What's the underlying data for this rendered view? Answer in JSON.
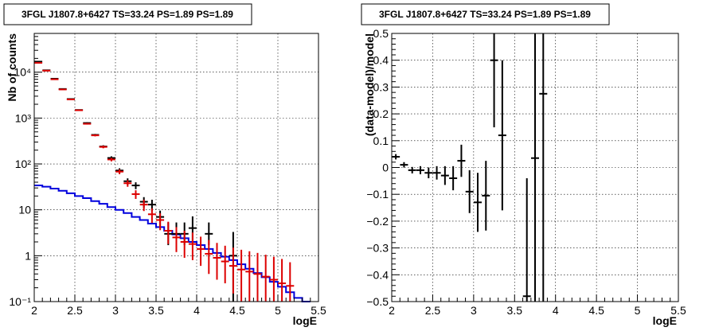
{
  "chart_data": [
    {
      "type": "line",
      "title": "3FGL J1807.8+6427 TS=33.24 PS=1.89 PS=1.89",
      "xlabel": "logE",
      "ylabel": "Nb of counts",
      "xlim": [
        2,
        5.5
      ],
      "ylim": [
        0.1,
        70000
      ],
      "yscale": "log",
      "grid": true,
      "x_ticks": [
        "2",
        "2.5",
        "3",
        "3.5",
        "4",
        "4.5",
        "5",
        "5.5"
      ],
      "y_ticks": [
        "10⁻¹",
        "1",
        "10",
        "10²",
        "10³",
        "10⁴"
      ],
      "series": [
        {
          "color": "#0000dd",
          "kind": "step",
          "x": [
            2.0,
            2.1,
            2.2,
            2.3,
            2.4,
            2.5,
            2.6,
            2.7,
            2.8,
            2.9,
            3.0,
            3.1,
            3.2,
            3.3,
            3.4,
            3.5,
            3.6,
            3.7,
            3.8,
            3.9,
            4.0,
            4.1,
            4.2,
            4.3,
            4.4,
            4.5,
            4.6,
            4.7,
            4.8,
            4.9,
            5.0,
            5.1,
            5.2,
            5.3
          ],
          "values": [
            34,
            32,
            29,
            26,
            23,
            20,
            18,
            15.5,
            13.5,
            11.5,
            10,
            8.5,
            7,
            6,
            5,
            4.2,
            3.5,
            2.9,
            2.4,
            2,
            1.7,
            1.4,
            1.15,
            0.95,
            0.8,
            0.65,
            0.52,
            0.42,
            0.34,
            0.27,
            0.21,
            0.16,
            0.12,
            0.1
          ]
        },
        {
          "color": "#000000",
          "kind": "errorbar",
          "x": [
            2.05,
            2.15,
            2.25,
            2.35,
            2.45,
            2.55,
            2.65,
            2.75,
            2.85,
            2.95,
            3.05,
            3.15,
            3.25,
            3.35,
            3.45,
            3.55,
            3.65,
            3.75,
            3.85,
            3.95,
            4.15,
            4.45
          ],
          "values": [
            17000,
            11000,
            7200,
            4300,
            2600,
            1500,
            780,
            430,
            240,
            135,
            72,
            42,
            34,
            15,
            13,
            7,
            3,
            3,
            3,
            4,
            3,
            1
          ],
          "err_low": [
            130,
            105,
            85,
            65,
            51,
            39,
            28,
            21,
            15.5,
            11.6,
            8.5,
            6.5,
            5.8,
            3.9,
            3.6,
            2.6,
            1.3,
            1.3,
            1.3,
            2,
            1.3,
            0.9
          ],
          "err_high": [
            130,
            105,
            85,
            65,
            51,
            39,
            28,
            21,
            15.5,
            11.6,
            8.5,
            6.5,
            5.8,
            3.9,
            3.6,
            2.6,
            2.3,
            2.3,
            2.3,
            3.2,
            2.3,
            2.3
          ]
        },
        {
          "color": "#dd0000",
          "kind": "errorbar",
          "x": [
            2.05,
            2.15,
            2.25,
            2.35,
            2.45,
            2.55,
            2.65,
            2.75,
            2.85,
            2.95,
            3.05,
            3.15,
            3.25,
            3.35,
            3.45,
            3.55,
            3.65,
            3.75,
            3.85,
            3.95,
            4.05,
            4.15,
            4.25,
            4.35,
            4.45,
            4.55,
            4.65,
            4.75,
            4.85,
            4.95,
            5.05,
            5.15
          ],
          "values": [
            16000,
            10800,
            7000,
            4200,
            2550,
            1480,
            750,
            420,
            235,
            125,
            68,
            38,
            22,
            13,
            8,
            6,
            3.5,
            2.5,
            2,
            1.8,
            1.4,
            1.1,
            0.9,
            0.75,
            0.6,
            0.5,
            0.45,
            0.4,
            0.35,
            0.3,
            0.25,
            0.22
          ],
          "err_low": [
            130,
            105,
            85,
            65,
            51,
            39,
            28,
            21,
            15.5,
            11.2,
            8.2,
            6.2,
            4.7,
            3.6,
            2.8,
            2.4,
            1.7,
            1.3,
            1.1,
            1.0,
            0.8,
            0.7,
            0.6,
            0.5,
            0.45,
            0.4,
            0.35,
            0.32,
            0.28,
            0.25,
            0.2,
            0.18
          ],
          "err_high": [
            130,
            105,
            85,
            65,
            51,
            39,
            28,
            21,
            15.5,
            11.2,
            8.2,
            6.2,
            4.7,
            3.6,
            2.8,
            2.4,
            2,
            1.7,
            1.5,
            1.4,
            1.2,
            1.1,
            1.0,
            0.9,
            0.9,
            0.85,
            0.8,
            0.75,
            0.7,
            0.65,
            0.6,
            0.5
          ]
        }
      ]
    },
    {
      "type": "scatter",
      "title": "3FGL J1807.8+6427 TS=33.24 PS=1.89 PS=1.89",
      "xlabel": "logE",
      "ylabel": "(data-model)/model",
      "xlim": [
        2,
        5.5
      ],
      "ylim": [
        -0.5,
        0.5
      ],
      "grid": true,
      "x_ticks": [
        "2",
        "2.5",
        "3",
        "3.5",
        "4",
        "4.5",
        "5",
        "5.5"
      ],
      "y_ticks": [
        "−0.5",
        "−0.4",
        "−0.3",
        "−0.2",
        "−0.1",
        "0",
        "0.1",
        "0.2",
        "0.3",
        "0.4",
        "0.5"
      ],
      "series": [
        {
          "color": "#000000",
          "kind": "errorbar",
          "x": [
            2.05,
            2.15,
            2.25,
            2.35,
            2.45,
            2.55,
            2.65,
            2.75,
            2.85,
            2.95,
            3.05,
            3.15,
            3.25,
            3.35,
            3.65,
            3.75,
            3.85
          ],
          "values": [
            0.04,
            0.01,
            -0.01,
            -0.01,
            -0.02,
            -0.02,
            -0.03,
            -0.04,
            0.025,
            -0.09,
            -0.13,
            -0.105,
            0.4,
            0.12,
            -0.48,
            0.035,
            0.275
          ],
          "err": [
            0.01,
            0.01,
            0.012,
            0.015,
            0.02,
            0.025,
            0.035,
            0.045,
            0.06,
            0.08,
            0.11,
            0.13,
            0.25,
            0.28,
            0.44,
            0.55,
            0.82
          ]
        }
      ]
    }
  ]
}
